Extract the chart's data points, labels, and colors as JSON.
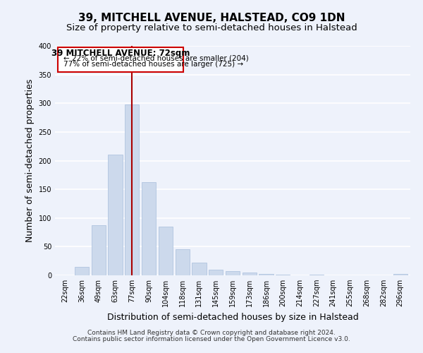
{
  "title": "39, MITCHELL AVENUE, HALSTEAD, CO9 1DN",
  "subtitle": "Size of property relative to semi-detached houses in Halstead",
  "xlabel": "Distribution of semi-detached houses by size in Halstead",
  "ylabel": "Number of semi-detached properties",
  "bar_labels": [
    "22sqm",
    "36sqm",
    "49sqm",
    "63sqm",
    "77sqm",
    "90sqm",
    "104sqm",
    "118sqm",
    "131sqm",
    "145sqm",
    "159sqm",
    "173sqm",
    "186sqm",
    "200sqm",
    "214sqm",
    "227sqm",
    "241sqm",
    "255sqm",
    "268sqm",
    "282sqm",
    "296sqm"
  ],
  "bar_values": [
    0,
    15,
    87,
    210,
    298,
    163,
    85,
    45,
    22,
    10,
    8,
    5,
    3,
    1,
    0,
    1,
    0,
    0,
    0,
    0,
    3
  ],
  "bar_color": "#ccd9ec",
  "bar_edge_color": "#a8bedb",
  "highlight_bar_index": 4,
  "highlight_line_color": "#aa0000",
  "ylim": [
    0,
    400
  ],
  "yticks": [
    0,
    50,
    100,
    150,
    200,
    250,
    300,
    350,
    400
  ],
  "annotation_title": "39 MITCHELL AVENUE: 72sqm",
  "annotation_line1": "← 22% of semi-detached houses are smaller (204)",
  "annotation_line2": "77% of semi-detached houses are larger (725) →",
  "annotation_box_color": "#ffffff",
  "annotation_box_edge": "#cc0000",
  "footer_line1": "Contains HM Land Registry data © Crown copyright and database right 2024.",
  "footer_line2": "Contains public sector information licensed under the Open Government Licence v3.0.",
  "background_color": "#eef2fb",
  "grid_color": "#ffffff",
  "title_fontsize": 11,
  "subtitle_fontsize": 9.5,
  "axis_label_fontsize": 9,
  "tick_fontsize": 7,
  "annotation_title_fontsize": 8.5,
  "annotation_body_fontsize": 7.5,
  "footer_fontsize": 6.5
}
